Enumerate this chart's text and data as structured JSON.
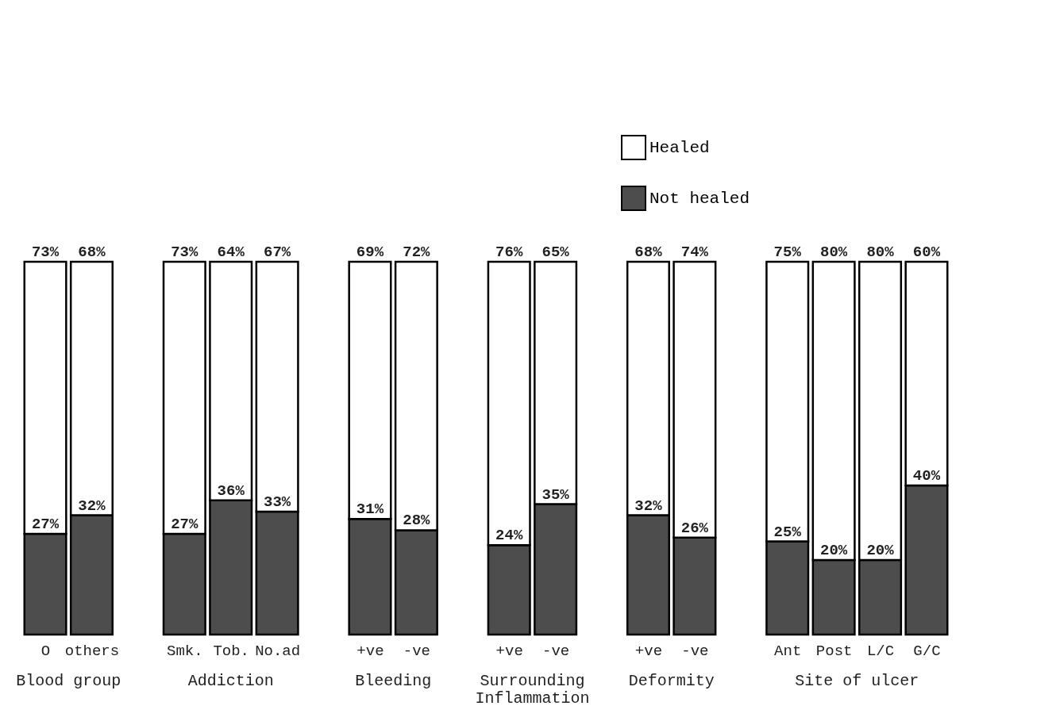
{
  "chart_data": {
    "type": "bar",
    "stacked": true,
    "legend": "top right",
    "tick_labels": "x",
    "categories": [
      "O",
      "others",
      null,
      "Smk.",
      "Tob.",
      "No.ad",
      null,
      "+ve",
      "-ve",
      null,
      "+ve",
      "-ve",
      null,
      "+ve",
      "-ve",
      null,
      "Ant",
      "Post",
      "L/C",
      "G/C"
    ],
    "series": [
      {
        "name": "Not healed",
        "color": "#4d4d4d",
        "values": [
          27,
          32,
          null,
          27,
          36,
          33,
          null,
          31,
          28,
          null,
          24,
          35,
          null,
          32,
          26,
          null,
          25,
          20,
          20,
          40
        ],
        "value_labels": [
          "27%",
          "32%",
          null,
          "27%",
          "36%",
          "33%",
          null,
          "31%",
          "28%",
          null,
          "24%",
          "35%",
          null,
          "32%",
          "26%",
          null,
          "25%",
          "20%",
          "20%",
          "40%"
        ]
      },
      {
        "name": "Healed",
        "color": "#ffffff",
        "values": [
          73,
          68,
          null,
          73,
          64,
          67,
          null,
          69,
          72,
          null,
          76,
          65,
          null,
          68,
          74,
          null,
          75,
          80,
          80,
          60
        ],
        "value_labels": [
          "73%",
          "68%",
          null,
          "73%",
          "64%",
          "67%",
          null,
          "69%",
          "72%",
          null,
          "76%",
          "65%",
          null,
          "68%",
          "74%",
          null,
          "75%",
          "80%",
          "80%",
          "60%"
        ]
      }
    ],
    "annotations": [
      "Blood group",
      "Addiction",
      "Bleeding",
      "Surrounding Inflammation",
      "Deformity",
      "Site of ulcer"
    ]
  }
}
